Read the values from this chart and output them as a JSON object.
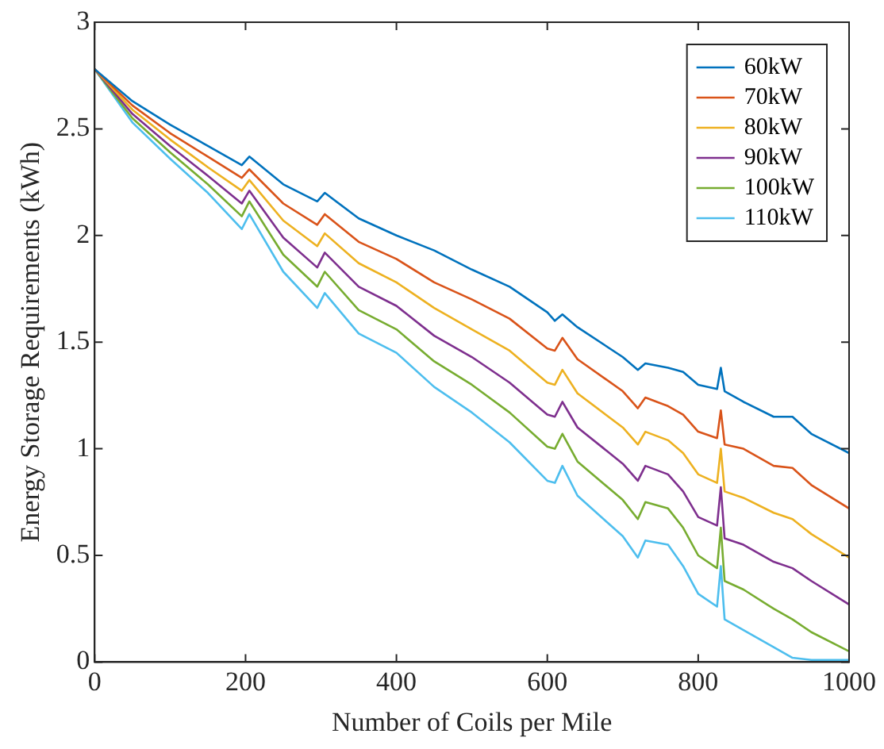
{
  "chart_data": {
    "type": "line",
    "xlabel": "Number of Coils per Mile",
    "ylabel": "Energy Storage Requirements (kWh)",
    "x": [
      0,
      50,
      100,
      150,
      195,
      205,
      250,
      295,
      305,
      350,
      400,
      450,
      500,
      550,
      600,
      610,
      620,
      640,
      700,
      720,
      730,
      760,
      780,
      800,
      825,
      830,
      835,
      860,
      900,
      925,
      950,
      1000
    ],
    "series": [
      {
        "name": "60kW",
        "color": "#0072bd",
        "values": [
          2.78,
          2.63,
          2.52,
          2.42,
          2.33,
          2.37,
          2.24,
          2.16,
          2.2,
          2.08,
          2.0,
          1.93,
          1.84,
          1.76,
          1.64,
          1.6,
          1.63,
          1.57,
          1.43,
          1.37,
          1.4,
          1.38,
          1.36,
          1.3,
          1.28,
          1.38,
          1.27,
          1.22,
          1.15,
          1.15,
          1.07,
          0.98
        ]
      },
      {
        "name": "70kW",
        "color": "#d95319",
        "values": [
          2.78,
          2.61,
          2.48,
          2.37,
          2.27,
          2.31,
          2.15,
          2.05,
          2.1,
          1.97,
          1.89,
          1.78,
          1.7,
          1.61,
          1.47,
          1.46,
          1.52,
          1.42,
          1.27,
          1.19,
          1.24,
          1.2,
          1.16,
          1.08,
          1.05,
          1.18,
          1.02,
          1.0,
          0.92,
          0.91,
          0.83,
          0.72
        ]
      },
      {
        "name": "80kW",
        "color": "#edb120",
        "values": [
          2.78,
          2.59,
          2.45,
          2.32,
          2.21,
          2.26,
          2.07,
          1.95,
          2.01,
          1.87,
          1.78,
          1.66,
          1.56,
          1.46,
          1.31,
          1.3,
          1.37,
          1.26,
          1.1,
          1.02,
          1.08,
          1.04,
          0.98,
          0.88,
          0.84,
          1.0,
          0.8,
          0.77,
          0.7,
          0.67,
          0.6,
          0.49
        ]
      },
      {
        "name": "90kW",
        "color": "#7e2f8e",
        "values": [
          2.78,
          2.57,
          2.42,
          2.28,
          2.15,
          2.21,
          1.99,
          1.85,
          1.92,
          1.76,
          1.67,
          1.53,
          1.43,
          1.31,
          1.16,
          1.15,
          1.22,
          1.1,
          0.93,
          0.85,
          0.92,
          0.88,
          0.8,
          0.68,
          0.64,
          0.82,
          0.58,
          0.55,
          0.47,
          0.44,
          0.38,
          0.27
        ]
      },
      {
        "name": "100kW",
        "color": "#77ac30",
        "values": [
          2.78,
          2.55,
          2.39,
          2.24,
          2.09,
          2.16,
          1.91,
          1.76,
          1.83,
          1.65,
          1.56,
          1.41,
          1.3,
          1.17,
          1.01,
          1.0,
          1.07,
          0.94,
          0.76,
          0.67,
          0.75,
          0.72,
          0.63,
          0.5,
          0.44,
          0.63,
          0.38,
          0.34,
          0.25,
          0.2,
          0.14,
          0.05
        ]
      },
      {
        "name": "110kW",
        "color": "#4dbeee",
        "values": [
          2.78,
          2.53,
          2.36,
          2.2,
          2.03,
          2.1,
          1.83,
          1.66,
          1.73,
          1.54,
          1.45,
          1.29,
          1.17,
          1.03,
          0.85,
          0.84,
          0.92,
          0.78,
          0.59,
          0.49,
          0.57,
          0.55,
          0.45,
          0.32,
          0.26,
          0.45,
          0.2,
          0.15,
          0.07,
          0.02,
          0.01,
          0.01
        ]
      }
    ],
    "xlim": [
      0,
      1000
    ],
    "xticks": [
      0,
      200,
      400,
      600,
      800,
      1000
    ],
    "ylim": [
      0,
      3
    ],
    "yticks": [
      0,
      0.5,
      1,
      1.5,
      2,
      2.5,
      3
    ],
    "grid": false,
    "legend": "top right",
    "marker": "none",
    "line_style": "solid"
  }
}
